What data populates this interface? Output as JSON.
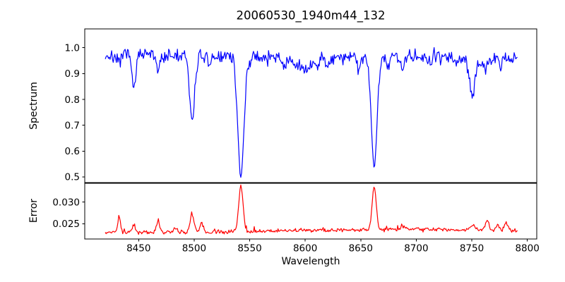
{
  "chart_data": {
    "type": "line",
    "title": "20060530_1940m44_132",
    "xlabel": "Wavelength",
    "grid": false,
    "legend": "none",
    "x_axis": {
      "lim": [
        8401.5,
        8808.5
      ],
      "data_range": [
        8420,
        8791
      ],
      "ticks": [
        {
          "v": 8450,
          "label": "8450"
        },
        {
          "v": 8500,
          "label": "8500"
        },
        {
          "v": 8550,
          "label": "8550"
        },
        {
          "v": 8600,
          "label": "8600"
        },
        {
          "v": 8650,
          "label": "8650"
        },
        {
          "v": 8700,
          "label": "8700"
        },
        {
          "v": 8750,
          "label": "8750"
        },
        {
          "v": 8800,
          "label": "8800"
        }
      ]
    },
    "panels": [
      {
        "name": "spectrum",
        "ylabel": "Spectrum",
        "color": "#0000ff",
        "ylim": [
          0.478,
          1.073
        ],
        "yticks": [
          {
            "v": 0.5,
            "label": "0.5"
          },
          {
            "v": 0.6,
            "label": "0.6"
          },
          {
            "v": 0.7,
            "label": "0.7"
          },
          {
            "v": 0.8,
            "label": "0.8"
          },
          {
            "v": 0.9,
            "label": "0.9"
          },
          {
            "v": 1.0,
            "label": "1.0"
          }
        ],
        "continuum": 0.966,
        "noise_sigma": 0.013,
        "n_points": 520,
        "absorption_lines": [
          {
            "center": 8432.5,
            "depth": 0.04,
            "width": 1.2
          },
          {
            "center": 8446.0,
            "depth": 0.125,
            "width": 1.5
          },
          {
            "center": 8467.5,
            "depth": 0.06,
            "width": 1.4
          },
          {
            "center": 8498.2,
            "depth": 0.25,
            "width": 2.2
          },
          {
            "center": 8514.0,
            "depth": 0.045,
            "width": 1.4
          },
          {
            "center": 8542.1,
            "depth": 0.46,
            "width": 2.8
          },
          {
            "center": 8582.0,
            "depth": 0.04,
            "width": 1.5
          },
          {
            "center": 8598.0,
            "depth": 0.048,
            "width": 6.5
          },
          {
            "center": 8611.0,
            "depth": 0.03,
            "width": 2.0
          },
          {
            "center": 8621.0,
            "depth": 0.035,
            "width": 1.5
          },
          {
            "center": 8648.0,
            "depth": 0.04,
            "width": 1.8
          },
          {
            "center": 8662.1,
            "depth": 0.425,
            "width": 2.6
          },
          {
            "center": 8674.8,
            "depth": 0.045,
            "width": 1.5
          },
          {
            "center": 8688.0,
            "depth": 0.05,
            "width": 1.8
          },
          {
            "center": 8713.0,
            "depth": 0.028,
            "width": 1.5
          },
          {
            "center": 8736.0,
            "depth": 0.028,
            "width": 1.5
          },
          {
            "center": 8750.5,
            "depth": 0.13,
            "width": 2.4
          },
          {
            "center": 8757.0,
            "depth": 0.02,
            "width": 10.0
          },
          {
            "center": 8763.0,
            "depth": 0.035,
            "width": 1.5
          },
          {
            "center": 8776.0,
            "depth": 0.035,
            "width": 1.5
          }
        ]
      },
      {
        "name": "error",
        "ylabel": "Error",
        "color": "#ff0000",
        "ylim": [
          0.0215,
          0.0343
        ],
        "yticks": [
          {
            "v": 0.025,
            "label": "0.025"
          },
          {
            "v": 0.03,
            "label": "0.030"
          }
        ],
        "baseline": 0.023,
        "baseline_bump": {
          "center": 8690,
          "amp": 0.0007,
          "width": 95
        },
        "noise_sigma": 0.00022,
        "n_points": 520,
        "peaks": [
          {
            "center": 8432.5,
            "amp": 0.0036,
            "width": 1.2
          },
          {
            "center": 8446.0,
            "amp": 0.0015,
            "width": 1.3
          },
          {
            "center": 8467.5,
            "amp": 0.0026,
            "width": 1.3
          },
          {
            "center": 8483.0,
            "amp": 0.0008,
            "width": 1.5
          },
          {
            "center": 8498.2,
            "amp": 0.0042,
            "width": 1.8
          },
          {
            "center": 8507.0,
            "amp": 0.0022,
            "width": 1.3
          },
          {
            "center": 8542.1,
            "amp": 0.0105,
            "width": 1.9
          },
          {
            "center": 8662.1,
            "amp": 0.01,
            "width": 1.8
          },
          {
            "center": 8688.0,
            "amp": 0.0008,
            "width": 2.0
          },
          {
            "center": 8750.5,
            "amp": 0.001,
            "width": 2.5
          },
          {
            "center": 8764.0,
            "amp": 0.0026,
            "width": 1.4
          },
          {
            "center": 8773.0,
            "amp": 0.0014,
            "width": 1.4
          },
          {
            "center": 8781.0,
            "amp": 0.002,
            "width": 1.6
          }
        ]
      }
    ]
  }
}
